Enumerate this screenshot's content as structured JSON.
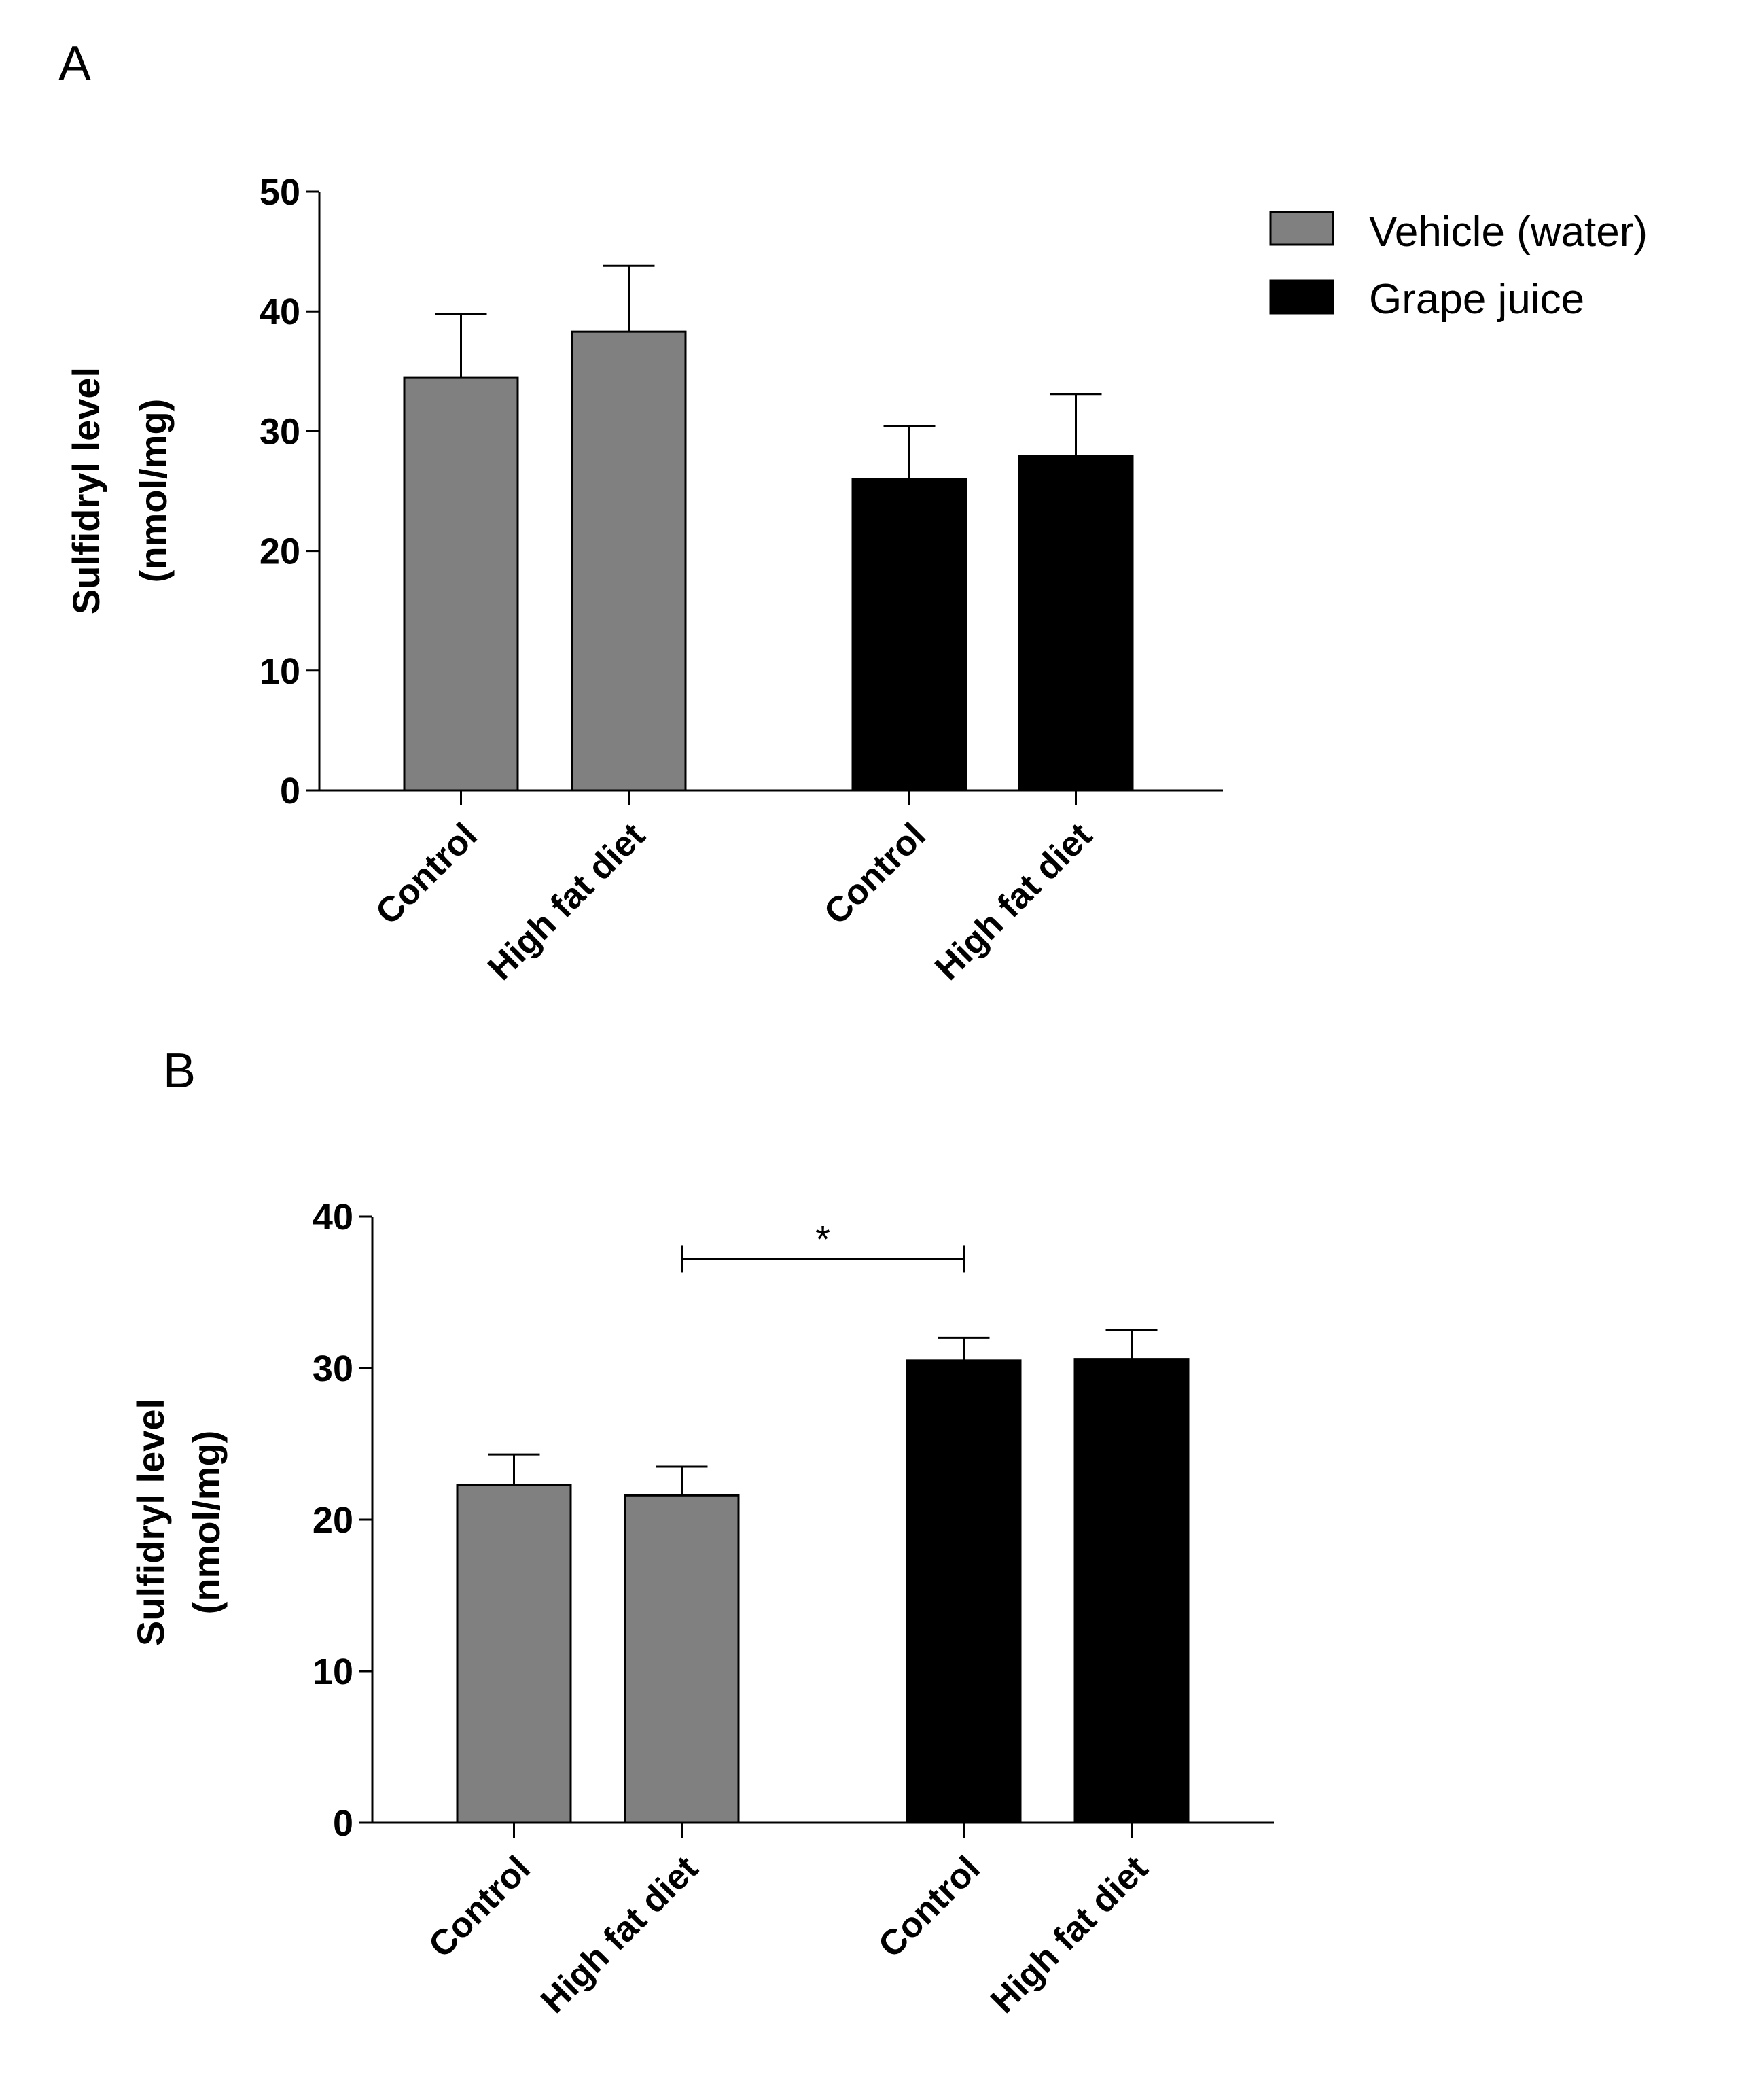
{
  "chart_data": [
    {
      "type": "bar",
      "panel_label": "A",
      "categories": [
        "Control",
        "High fat diet",
        "Control",
        "High fat diet"
      ],
      "groups": [
        "Vehicle (water)",
        "Vehicle (water)",
        "Grape juice",
        "Grape juice"
      ],
      "values": [
        34.5,
        38.3,
        26.0,
        27.9
      ],
      "errors": [
        5.3,
        5.5,
        4.4,
        5.2
      ],
      "ylabel_line1": "Sulfidryl level",
      "ylabel_line2": "(nmol/mg)",
      "xlabel": "",
      "ylim": [
        0,
        50
      ],
      "yticks": [
        0,
        10,
        20,
        30,
        40,
        50
      ],
      "legend": [
        {
          "name": "Vehicle (water)",
          "color": "#808080"
        },
        {
          "name": "Grape juice",
          "color": "#000000"
        }
      ],
      "legend_position": "top-right"
    },
    {
      "type": "bar",
      "panel_label": "B",
      "categories": [
        "Control",
        "High fat diet",
        "Control",
        "High fat diet"
      ],
      "groups": [
        "Vehicle (water)",
        "Vehicle (water)",
        "Grape juice",
        "Grape juice"
      ],
      "values": [
        22.3,
        21.6,
        30.5,
        30.6
      ],
      "errors": [
        2.0,
        1.9,
        1.5,
        1.9
      ],
      "ylabel_line1": "Sulfidryl  level",
      "ylabel_line2": "(nmol/mg)",
      "xlabel": "",
      "ylim": [
        0,
        40
      ],
      "yticks": [
        0,
        10,
        20,
        30,
        40
      ],
      "significance": {
        "label": "*",
        "from_index": 1,
        "to_index": 2,
        "y": 37.2
      }
    }
  ],
  "colors": {
    "vehicle": "#808080",
    "grape": "#000000"
  }
}
